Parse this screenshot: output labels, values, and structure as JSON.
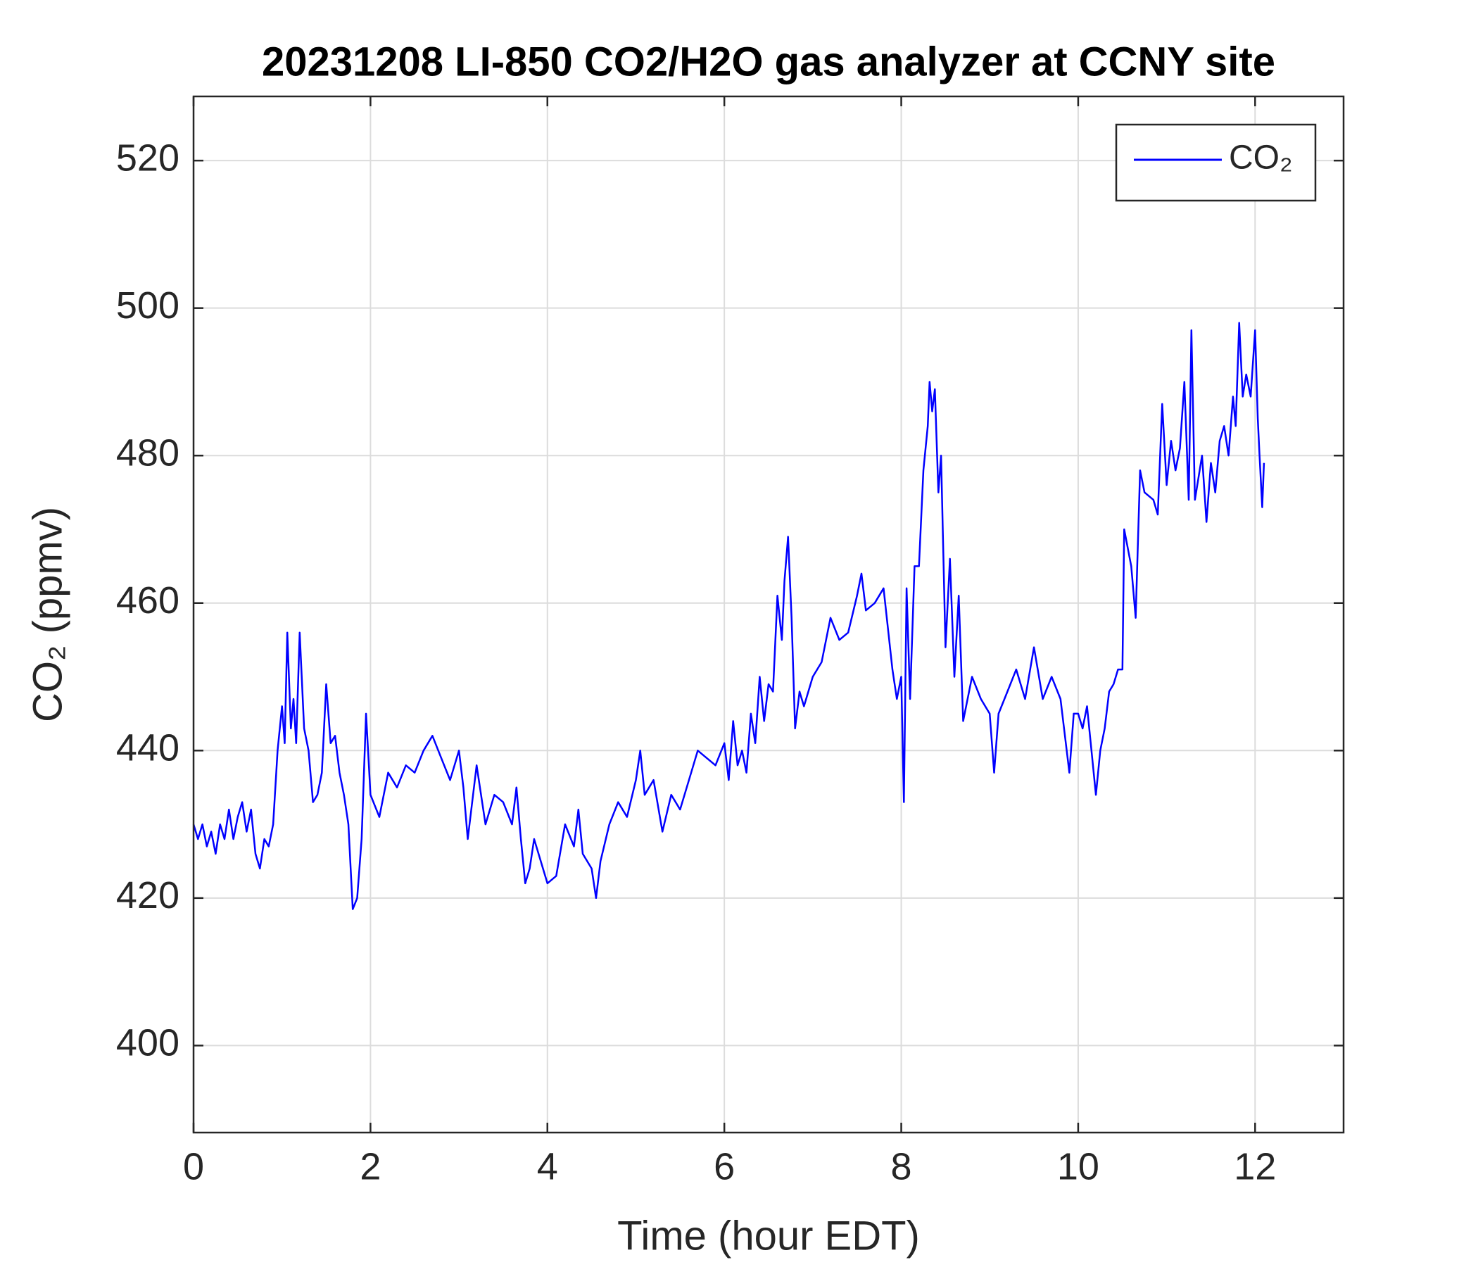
{
  "chart_data": {
    "type": "line",
    "title": "20231208 LI-850 CO2/H2O gas analyzer at CCNY site",
    "x_label": "Time (hour EDT)",
    "y_label": "CO₂ (ppmv)",
    "xlim": [
      0,
      13
    ],
    "ylim": [
      388.2,
      528.7
    ],
    "xticks": [
      0,
      2,
      4,
      6,
      8,
      10,
      12
    ],
    "yticks": [
      400,
      420,
      440,
      460,
      480,
      500,
      520
    ],
    "grid": true,
    "legend": "northeast",
    "x": [
      0,
      0.05,
      0.1,
      0.15,
      0.2,
      0.25,
      0.3,
      0.35,
      0.4,
      0.45,
      0.5,
      0.55,
      0.6,
      0.65,
      0.7,
      0.75,
      0.8,
      0.85,
      0.9,
      0.95,
      1.0,
      1.03,
      1.06,
      1.1,
      1.13,
      1.16,
      1.2,
      1.25,
      1.3,
      1.35,
      1.4,
      1.45,
      1.5,
      1.55,
      1.6,
      1.65,
      1.7,
      1.75,
      1.8,
      1.85,
      1.9,
      1.95,
      2.0,
      2.1,
      2.2,
      2.3,
      2.4,
      2.5,
      2.6,
      2.7,
      2.8,
      2.9,
      3.0,
      3.05,
      3.1,
      3.15,
      3.2,
      3.3,
      3.4,
      3.5,
      3.6,
      3.65,
      3.7,
      3.75,
      3.8,
      3.85,
      3.9,
      4.0,
      4.1,
      4.2,
      4.3,
      4.35,
      4.4,
      4.5,
      4.55,
      4.6,
      4.7,
      4.8,
      4.9,
      5.0,
      5.05,
      5.1,
      5.2,
      5.3,
      5.4,
      5.5,
      5.6,
      5.7,
      5.8,
      5.9,
      6.0,
      6.05,
      6.1,
      6.15,
      6.2,
      6.25,
      6.3,
      6.35,
      6.4,
      6.45,
      6.5,
      6.55,
      6.6,
      6.65,
      6.68,
      6.72,
      6.76,
      6.8,
      6.85,
      6.9,
      7.0,
      7.1,
      7.2,
      7.3,
      7.4,
      7.5,
      7.55,
      7.6,
      7.7,
      7.8,
      7.9,
      7.95,
      8.0,
      8.03,
      8.06,
      8.1,
      8.15,
      8.2,
      8.25,
      8.3,
      8.32,
      8.35,
      8.38,
      8.42,
      8.45,
      8.5,
      8.55,
      8.6,
      8.65,
      8.7,
      8.8,
      8.9,
      9.0,
      9.05,
      9.1,
      9.2,
      9.3,
      9.4,
      9.5,
      9.6,
      9.7,
      9.8,
      9.9,
      9.95,
      10.0,
      10.05,
      10.1,
      10.15,
      10.2,
      10.25,
      10.3,
      10.35,
      10.4,
      10.45,
      10.5,
      10.52,
      10.6,
      10.65,
      10.7,
      10.75,
      10.85,
      10.9,
      10.95,
      11.0,
      11.05,
      11.1,
      11.15,
      11.2,
      11.25,
      11.28,
      11.32,
      11.4,
      11.45,
      11.5,
      11.55,
      11.6,
      11.65,
      11.7,
      11.75,
      11.78,
      11.82,
      11.86,
      11.9,
      11.95,
      12.0,
      12.03,
      12.05,
      12.08,
      12.1
    ],
    "series": [
      {
        "name": "CO₂",
        "color": "#0000ff",
        "values": [
          430,
          428,
          430,
          427,
          429,
          426,
          430,
          428,
          432,
          428,
          431,
          433,
          429,
          432,
          426,
          424,
          428,
          427,
          430,
          440,
          446,
          441,
          456,
          443,
          447,
          441,
          456,
          443,
          440,
          433,
          434,
          437,
          449,
          441,
          442,
          437,
          434,
          430,
          418.5,
          420,
          428,
          445,
          434,
          431,
          437,
          435,
          438,
          437,
          440,
          442,
          439,
          436,
          440,
          435,
          428,
          433,
          438,
          430,
          434,
          433,
          430,
          435,
          428,
          422,
          424,
          428,
          426,
          422,
          423,
          430,
          427,
          432,
          426,
          424,
          420,
          425,
          430,
          433,
          431,
          436,
          440,
          434,
          436,
          429,
          434,
          432,
          436,
          440,
          439,
          438,
          441,
          436,
          444,
          438,
          440,
          437,
          445,
          441,
          450,
          444,
          449,
          448,
          461,
          455,
          463,
          469,
          458,
          443,
          448,
          446,
          450,
          452,
          458,
          455,
          456,
          461,
          464,
          459,
          460,
          462,
          451,
          447,
          450,
          433,
          462,
          447,
          465,
          465,
          478,
          484,
          490,
          486,
          489,
          475,
          480,
          454,
          466,
          450,
          461,
          444,
          450,
          447,
          445,
          437,
          445,
          448,
          451,
          447,
          454,
          447,
          450,
          447,
          437,
          445,
          445,
          443,
          446,
          440,
          434,
          440,
          443,
          448,
          449,
          451,
          451,
          470,
          465,
          458,
          478,
          475,
          474,
          472,
          487,
          476,
          482,
          478,
          481,
          490,
          474,
          497,
          474,
          480,
          471,
          479,
          475,
          482,
          484,
          480,
          488,
          484,
          498,
          488,
          491,
          488,
          497,
          485,
          480,
          473,
          479
        ]
      }
    ]
  }
}
